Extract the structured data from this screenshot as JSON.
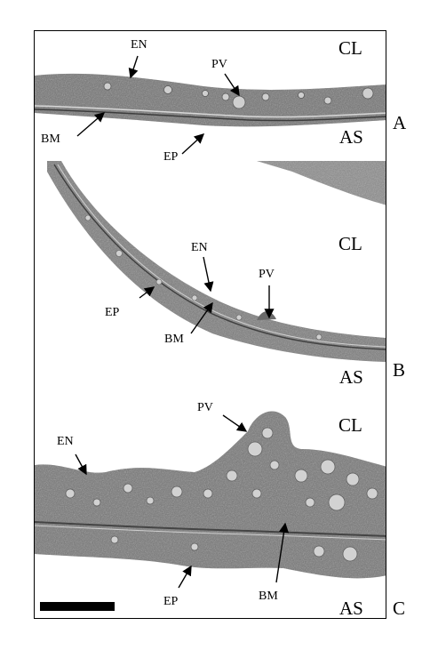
{
  "panels": {
    "A": {
      "letter": "A",
      "cl": "CL",
      "as": "AS",
      "labels": {
        "en": "EN",
        "pv": "PV",
        "bm": "BM",
        "ep": "EP"
      }
    },
    "B": {
      "letter": "B",
      "cl": "CL",
      "as": "AS",
      "labels": {
        "en": "EN",
        "pv": "PV",
        "bm": "BM",
        "ep": "EP"
      }
    },
    "C": {
      "letter": "C",
      "cl": "CL",
      "as": "AS",
      "labels": {
        "en": "EN",
        "pv": "PV",
        "bm": "BM",
        "ep": "EP"
      }
    }
  },
  "colors": {
    "tissue": "#6f6f6f",
    "tissue_dark": "#4a4a4a",
    "vesicle": "#c9c9c9",
    "background": "#ffffff",
    "scale_bar": "#000000"
  }
}
